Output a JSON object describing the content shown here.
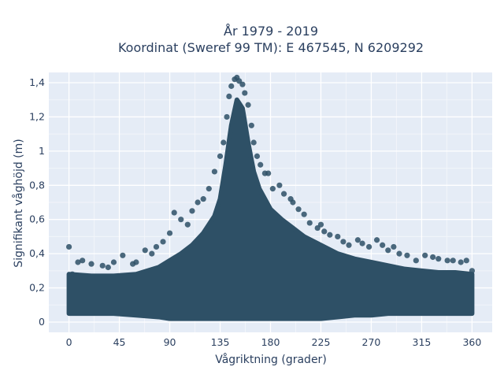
{
  "chart_data": {
    "type": "scatter",
    "title_lines": [
      "År 1979 - 2019",
      "Koordinat (Sweref 99 TM): E 467545, N 6209292"
    ],
    "xlabel": "Vågriktning (grader)",
    "ylabel": "Signifikant våghöjd (m)",
    "xlim": [
      -18,
      378
    ],
    "ylim": [
      -0.06,
      1.46
    ],
    "x_ticks": [
      0,
      45,
      90,
      135,
      180,
      225,
      270,
      315,
      360
    ],
    "x_tick_labels": [
      "0",
      "45",
      "90",
      "135",
      "180",
      "225",
      "270",
      "315",
      "360"
    ],
    "y_ticks": [
      0,
      0.2,
      0.4,
      0.6,
      0.8,
      1.0,
      1.2,
      1.4
    ],
    "y_tick_labels": [
      "0",
      "0,2",
      "0,4",
      "0,6",
      "0,8",
      "1",
      "1,2",
      "1,4"
    ],
    "grid": true,
    "legend": "none",
    "marker_color": "#2e5066",
    "background_color": "#e5ecf6",
    "series": [
      {
        "points": [
          [
            0,
            0.44
          ],
          [
            3,
            0.28
          ],
          [
            8,
            0.35
          ],
          [
            12,
            0.36
          ],
          [
            20,
            0.34
          ],
          [
            30,
            0.33
          ],
          [
            35,
            0.32
          ],
          [
            40,
            0.35
          ],
          [
            48,
            0.39
          ],
          [
            57,
            0.34
          ],
          [
            60,
            0.35
          ],
          [
            68,
            0.42
          ],
          [
            74,
            0.4
          ],
          [
            78,
            0.44
          ],
          [
            84,
            0.47
          ],
          [
            90,
            0.52
          ],
          [
            94,
            0.64
          ],
          [
            100,
            0.6
          ],
          [
            106,
            0.57
          ],
          [
            110,
            0.65
          ],
          [
            115,
            0.7
          ],
          [
            120,
            0.72
          ],
          [
            125,
            0.78
          ],
          [
            130,
            0.88
          ],
          [
            135,
            0.97
          ],
          [
            138,
            1.05
          ],
          [
            141,
            1.2
          ],
          [
            143,
            1.32
          ],
          [
            145,
            1.38
          ],
          [
            148,
            1.42
          ],
          [
            150,
            1.43
          ],
          [
            152,
            1.41
          ],
          [
            155,
            1.39
          ],
          [
            157,
            1.34
          ],
          [
            160,
            1.27
          ],
          [
            163,
            1.15
          ],
          [
            165,
            1.05
          ],
          [
            168,
            0.97
          ],
          [
            171,
            0.92
          ],
          [
            175,
            0.87
          ],
          [
            178,
            0.87
          ],
          [
            182,
            0.78
          ],
          [
            188,
            0.8
          ],
          [
            192,
            0.75
          ],
          [
            198,
            0.72
          ],
          [
            200,
            0.7
          ],
          [
            205,
            0.66
          ],
          [
            210,
            0.63
          ],
          [
            215,
            0.58
          ],
          [
            222,
            0.55
          ],
          [
            225,
            0.57
          ],
          [
            228,
            0.53
          ],
          [
            233,
            0.51
          ],
          [
            240,
            0.5
          ],
          [
            245,
            0.47
          ],
          [
            250,
            0.45
          ],
          [
            258,
            0.48
          ],
          [
            262,
            0.46
          ],
          [
            268,
            0.44
          ],
          [
            275,
            0.48
          ],
          [
            280,
            0.45
          ],
          [
            285,
            0.42
          ],
          [
            290,
            0.44
          ],
          [
            295,
            0.4
          ],
          [
            302,
            0.39
          ],
          [
            310,
            0.36
          ],
          [
            318,
            0.39
          ],
          [
            325,
            0.38
          ],
          [
            330,
            0.37
          ],
          [
            338,
            0.36
          ],
          [
            343,
            0.36
          ],
          [
            350,
            0.35
          ],
          [
            355,
            0.36
          ],
          [
            360,
            0.3
          ]
        ],
        "envelope": {
          "x": [
            0,
            20,
            40,
            60,
            80,
            90,
            100,
            110,
            120,
            130,
            135,
            140,
            145,
            150,
            155,
            160,
            165,
            170,
            175,
            180,
            190,
            200,
            210,
            225,
            240,
            255,
            270,
            285,
            300,
            315,
            330,
            345,
            360
          ],
          "y_upper": [
            0.28,
            0.27,
            0.27,
            0.28,
            0.32,
            0.36,
            0.4,
            0.45,
            0.52,
            0.62,
            0.72,
            0.92,
            1.15,
            1.3,
            1.25,
            1.05,
            0.88,
            0.78,
            0.72,
            0.66,
            0.6,
            0.55,
            0.5,
            0.45,
            0.4,
            0.37,
            0.35,
            0.33,
            0.31,
            0.3,
            0.29,
            0.29,
            0.28
          ],
          "y_lower": [
            0.05,
            0.05,
            0.05,
            0.04,
            0.03,
            0.02,
            0.02,
            0.02,
            0.02,
            0.02,
            0.02,
            0.02,
            0.02,
            0.02,
            0.02,
            0.02,
            0.02,
            0.02,
            0.02,
            0.02,
            0.02,
            0.02,
            0.02,
            0.02,
            0.03,
            0.04,
            0.04,
            0.05,
            0.05,
            0.05,
            0.05,
            0.05,
            0.05
          ]
        }
      }
    ]
  }
}
